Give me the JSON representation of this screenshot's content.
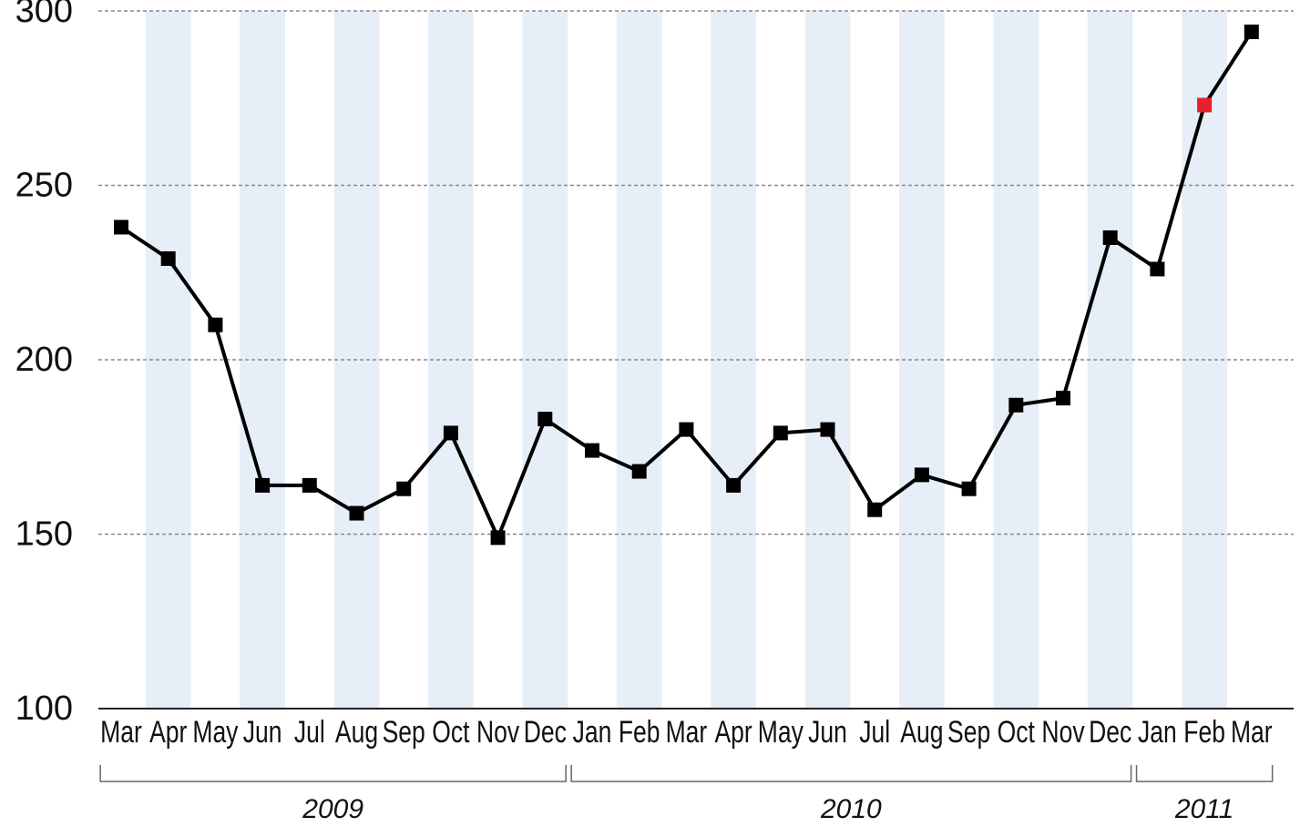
{
  "chart_data": {
    "type": "line",
    "categories": [
      "Mar",
      "Apr",
      "May",
      "Jun",
      "Jul",
      "Aug",
      "Sep",
      "Oct",
      "Nov",
      "Dec",
      "Jan",
      "Feb",
      "Mar",
      "Apr",
      "May",
      "Jun",
      "Jul",
      "Aug",
      "Sep",
      "Oct",
      "Nov",
      "Dec",
      "Jan",
      "Feb",
      "Mar"
    ],
    "values": [
      238,
      229,
      210,
      164,
      164,
      156,
      163,
      179,
      149,
      183,
      174,
      168,
      180,
      164,
      179,
      180,
      157,
      167,
      163,
      187,
      189,
      235,
      226,
      273,
      294
    ],
    "color": "#000000",
    "highlight_index": 23,
    "highlight_color": "#e8202a",
    "band_color": "#e6eff8",
    "ylim": [
      100,
      300
    ],
    "yticks": [
      100,
      150,
      200,
      250,
      300
    ],
    "grid": true,
    "year_groups": [
      {
        "label": "2009",
        "from": 0,
        "to": 9
      },
      {
        "label": "2010",
        "from": 10,
        "to": 21
      },
      {
        "label": "2011",
        "from": 22,
        "to": 24
      }
    ]
  }
}
